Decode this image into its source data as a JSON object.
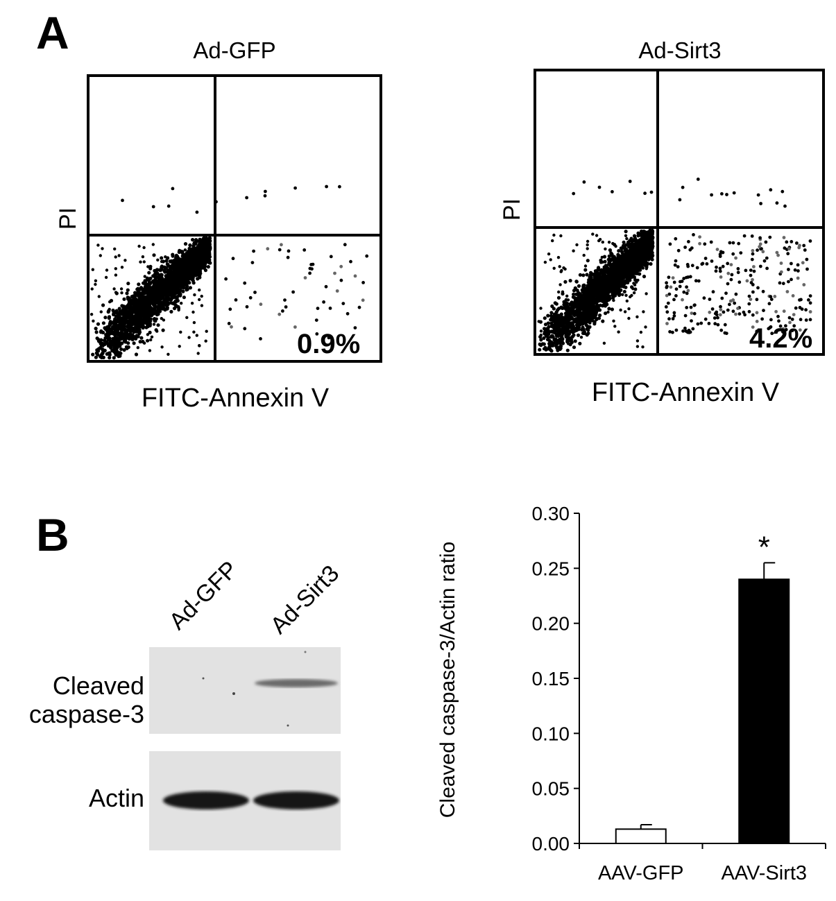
{
  "panel_a": {
    "letter": "A",
    "plots": [
      {
        "title": "Ad-GFP",
        "xlabel": "FITC-Annexin V",
        "ylabel": "PI",
        "percent": "0.9%"
      },
      {
        "title": "Ad-Sirt3",
        "xlabel": "FITC-Annexin V",
        "ylabel": "PI",
        "percent": "4.2%"
      }
    ]
  },
  "panel_b": {
    "letter": "B",
    "blot": {
      "lanes": [
        "Ad-GFP",
        "Ad-Sirt3"
      ],
      "rows": [
        {
          "label_line1": "Cleaved",
          "label_line2": "caspase-3"
        },
        {
          "label_line1": "Actin",
          "label_line2": ""
        }
      ]
    }
  },
  "chart_data": {
    "type": "bar",
    "categories": [
      "AAV-GFP",
      "AAV-Sirt3"
    ],
    "values": [
      0.013,
      0.24
    ],
    "errors": [
      0.004,
      0.015
    ],
    "significance": [
      "",
      "*"
    ],
    "bar_colors": [
      "#ffffff",
      "#000000"
    ],
    "ylabel": "Cleaved caspase-3/Actin ratio",
    "ylim": [
      0,
      0.3
    ],
    "yticks": [
      "0.00",
      "0.05",
      "0.10",
      "0.15",
      "0.20",
      "0.25",
      "0.30"
    ],
    "grid": false
  }
}
